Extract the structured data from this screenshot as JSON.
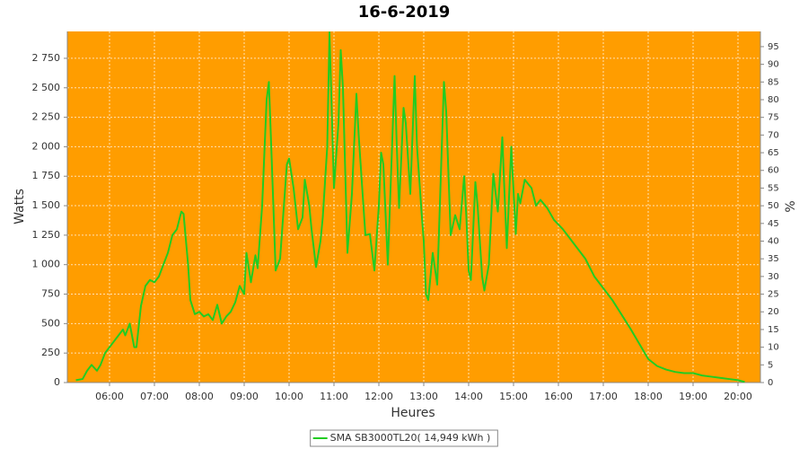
{
  "chart_data": {
    "type": "line",
    "title": "16-6-2019",
    "x_label": "Heures",
    "y_label": "Watts",
    "y2_label": "%",
    "background": "#ff9d00",
    "grid": true,
    "legend": "bottom",
    "xlim": [
      5.06,
      20.5
    ],
    "xticks": [
      {
        "value": 6,
        "label": "06:00"
      },
      {
        "value": 7,
        "label": "07:00"
      },
      {
        "value": 8,
        "label": "08:00"
      },
      {
        "value": 9,
        "label": "09:00"
      },
      {
        "value": 10,
        "label": "10:00"
      },
      {
        "value": 11,
        "label": "11:00"
      },
      {
        "value": 12,
        "label": "12:00"
      },
      {
        "value": 13,
        "label": "13:00"
      },
      {
        "value": 14,
        "label": "14:00"
      },
      {
        "value": 15,
        "label": "15:00"
      },
      {
        "value": 16,
        "label": "16:00"
      },
      {
        "value": 17,
        "label": "17:00"
      },
      {
        "value": 18,
        "label": "18:00"
      },
      {
        "value": 19,
        "label": "19:00"
      },
      {
        "value": 20,
        "label": "20:00"
      }
    ],
    "ylim": [
      0,
      2978
    ],
    "yticks": [
      0,
      250,
      500,
      750,
      {
        "value": 1000,
        "label": "1 000"
      },
      {
        "value": 1250,
        "label": "1 250"
      },
      {
        "value": 1500,
        "label": "1 500"
      },
      {
        "value": 1750,
        "label": "1 750"
      },
      {
        "value": 2000,
        "label": "2 000"
      },
      {
        "value": 2250,
        "label": "2 250"
      },
      {
        "value": 2500,
        "label": "2 500"
      },
      {
        "value": 2750,
        "label": "2 750"
      }
    ],
    "y2lim": [
      0,
      99.3
    ],
    "y2ticks": [
      0,
      5,
      10,
      15,
      20,
      25,
      30,
      35,
      40,
      45,
      50,
      55,
      60,
      65,
      70,
      75,
      80,
      85,
      90,
      95
    ],
    "x": [
      5.25,
      5.4,
      5.5,
      5.6,
      5.72,
      5.8,
      5.9,
      6.0,
      6.1,
      6.2,
      6.3,
      6.35,
      6.45,
      6.55,
      6.6,
      6.7,
      6.8,
      6.9,
      7.0,
      7.1,
      7.2,
      7.3,
      7.4,
      7.5,
      7.6,
      7.65,
      7.75,
      7.8,
      7.9,
      8.0,
      8.1,
      8.2,
      8.3,
      8.4,
      8.5,
      8.6,
      8.7,
      8.8,
      8.9,
      9.0,
      9.05,
      9.15,
      9.25,
      9.3,
      9.4,
      9.5,
      9.55,
      9.65,
      9.7,
      9.8,
      9.95,
      10.0,
      10.1,
      10.2,
      10.3,
      10.35,
      10.45,
      10.5,
      10.6,
      10.7,
      10.75,
      10.85,
      10.9,
      11.0,
      11.1,
      11.15,
      11.2,
      11.3,
      11.4,
      11.5,
      11.55,
      11.7,
      11.8,
      11.9,
      12.0,
      12.05,
      12.1,
      12.2,
      12.35,
      12.4,
      12.45,
      12.55,
      12.6,
      12.7,
      12.8,
      12.85,
      12.95,
      13.0,
      13.05,
      13.1,
      13.2,
      13.3,
      13.35,
      13.45,
      13.5,
      13.6,
      13.7,
      13.8,
      13.9,
      13.95,
      14.0,
      14.05,
      14.15,
      14.2,
      14.3,
      14.35,
      14.45,
      14.55,
      14.65,
      14.75,
      14.8,
      14.85,
      14.95,
      15.05,
      15.1,
      15.15,
      15.25,
      15.4,
      15.5,
      15.6,
      15.75,
      15.9,
      16.1,
      16.4,
      16.6,
      16.8,
      17.0,
      17.2,
      17.4,
      17.6,
      17.8,
      18.0,
      18.2,
      18.4,
      18.6,
      18.8,
      19.0,
      19.2,
      19.4,
      19.6,
      19.8,
      20.0,
      20.15
    ],
    "series": [
      {
        "name": "SMA SB3000TL20( 14,949 kWh )",
        "color": "#22cc22",
        "values": [
          20,
          30,
          100,
          150,
          100,
          150,
          250,
          300,
          350,
          400,
          450,
          400,
          500,
          300,
          300,
          650,
          820,
          870,
          850,
          900,
          1000,
          1100,
          1250,
          1300,
          1450,
          1430,
          1000,
          700,
          580,
          600,
          560,
          580,
          530,
          660,
          500,
          560,
          600,
          680,
          820,
          750,
          1100,
          850,
          1080,
          970,
          1500,
          2400,
          2550,
          1500,
          950,
          1050,
          1850,
          1900,
          1650,
          1300,
          1400,
          1720,
          1500,
          1300,
          980,
          1200,
          1400,
          2000,
          2970,
          1650,
          2200,
          2820,
          2500,
          1100,
          1600,
          2450,
          2100,
          1250,
          1260,
          950,
          1500,
          1950,
          1850,
          1000,
          2600,
          2000,
          1480,
          2330,
          2200,
          1600,
          2600,
          2000,
          1450,
          1200,
          750,
          700,
          1100,
          830,
          1400,
          2550,
          2300,
          1250,
          1420,
          1300,
          1750,
          1400,
          950,
          870,
          1700,
          1500,
          900,
          780,
          1000,
          1770,
          1450,
          2080,
          1600,
          1140,
          2000,
          1260,
          1600,
          1520,
          1720,
          1650,
          1500,
          1550,
          1480,
          1380,
          1300,
          1150,
          1050,
          900,
          800,
          700,
          580,
          460,
          330,
          200,
          140,
          110,
          90,
          80,
          80,
          60,
          50,
          40,
          30,
          20,
          5
        ]
      }
    ]
  }
}
